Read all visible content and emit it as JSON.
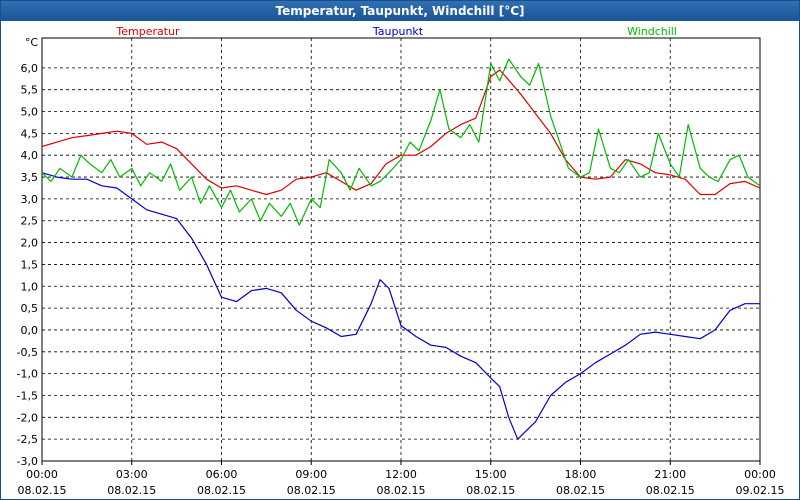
{
  "window": {
    "title": "Temperatur, Taupunkt, Windchill [°C]"
  },
  "chart_data": {
    "type": "line",
    "title": "Temperatur, Taupunkt, Windchill [°C]",
    "ylabel": "°C",
    "xlabel": "",
    "ylim": [
      -3.0,
      6.5
    ],
    "y_ticks": [
      "6,0",
      "5,5",
      "5,0",
      "4,5",
      "4,0",
      "3,5",
      "3,0",
      "2,5",
      "2,0",
      "1,5",
      "1,0",
      "0,5",
      "0,0",
      "-0,5",
      "-1,0",
      "-1,5",
      "-2,0",
      "-2,5",
      "-3,0"
    ],
    "x_ticks": [
      {
        "time": "00:00",
        "date": "08.02.15"
      },
      {
        "time": "03:00",
        "date": "08.02.15"
      },
      {
        "time": "06:00",
        "date": "08.02.15"
      },
      {
        "time": "09:00",
        "date": "08.02.15"
      },
      {
        "time": "12:00",
        "date": "08.02.15"
      },
      {
        "time": "15:00",
        "date": "08.02.15"
      },
      {
        "time": "18:00",
        "date": "08.02.15"
      },
      {
        "time": "21:00",
        "date": "08.02.15"
      },
      {
        "time": "00:00",
        "date": "09.02.15"
      }
    ],
    "grid": true,
    "legend_position": "top",
    "x_unit": "hours since 08.02.15 00:00",
    "series": [
      {
        "name": "Temperatur",
        "color": "#dd0000",
        "x": [
          0,
          0.5,
          1.0,
          1.5,
          2.0,
          2.5,
          3.0,
          3.5,
          4.0,
          4.5,
          5.0,
          5.5,
          6.0,
          6.5,
          7.0,
          7.5,
          8.0,
          8.5,
          9.0,
          9.5,
          10.0,
          10.5,
          11.0,
          11.5,
          12.0,
          12.5,
          13.0,
          13.5,
          14.0,
          14.5,
          15.0,
          15.3,
          15.5,
          16.0,
          16.5,
          17.0,
          17.5,
          18.0,
          18.5,
          19.0,
          19.5,
          20.0,
          20.5,
          21.0,
          21.5,
          22.0,
          22.5,
          23.0,
          23.5,
          24.0
        ],
        "values": [
          4.2,
          4.3,
          4.4,
          4.45,
          4.5,
          4.55,
          4.5,
          4.25,
          4.3,
          4.15,
          3.8,
          3.45,
          3.25,
          3.3,
          3.2,
          3.1,
          3.2,
          3.45,
          3.5,
          3.6,
          3.4,
          3.2,
          3.35,
          3.8,
          4.0,
          4.0,
          4.2,
          4.5,
          4.7,
          4.85,
          5.8,
          5.95,
          5.8,
          5.4,
          4.95,
          4.5,
          3.9,
          3.5,
          3.45,
          3.5,
          3.9,
          3.8,
          3.6,
          3.55,
          3.45,
          3.1,
          3.1,
          3.35,
          3.4,
          3.25
        ]
      },
      {
        "name": "Taupunkt",
        "color": "#0000cc",
        "x": [
          0,
          0.5,
          1.0,
          1.5,
          2.0,
          2.5,
          3.0,
          3.5,
          4.0,
          4.5,
          5.0,
          5.5,
          6.0,
          6.5,
          7.0,
          7.5,
          8.0,
          8.5,
          9.0,
          9.5,
          10.0,
          10.5,
          11.0,
          11.3,
          11.6,
          12.0,
          12.5,
          13.0,
          13.5,
          14.0,
          14.5,
          15.0,
          15.3,
          15.6,
          15.9,
          16.2,
          16.5,
          17.0,
          17.5,
          18.0,
          18.5,
          19.0,
          19.5,
          20.0,
          20.5,
          21.0,
          21.5,
          22.0,
          22.5,
          23.0,
          23.5,
          24.0
        ],
        "values": [
          3.6,
          3.5,
          3.45,
          3.45,
          3.3,
          3.25,
          3.0,
          2.75,
          2.65,
          2.55,
          2.1,
          1.5,
          0.75,
          0.65,
          0.9,
          0.95,
          0.85,
          0.45,
          0.2,
          0.05,
          -0.15,
          -0.1,
          0.6,
          1.15,
          0.95,
          0.1,
          -0.15,
          -0.35,
          -0.4,
          -0.6,
          -0.75,
          -1.1,
          -1.3,
          -2.0,
          -2.5,
          -2.3,
          -2.1,
          -1.5,
          -1.2,
          -1.0,
          -0.75,
          -0.55,
          -0.35,
          -0.1,
          -0.05,
          -0.1,
          -0.15,
          -0.2,
          0.0,
          0.45,
          0.6,
          0.6
        ]
      },
      {
        "name": "Windchill",
        "color": "#00bb00",
        "x": [
          0,
          0.3,
          0.6,
          1.0,
          1.3,
          1.6,
          2.0,
          2.3,
          2.6,
          3.0,
          3.3,
          3.6,
          4.0,
          4.3,
          4.6,
          5.0,
          5.3,
          5.6,
          6.0,
          6.3,
          6.6,
          7.0,
          7.3,
          7.6,
          8.0,
          8.3,
          8.6,
          9.0,
          9.3,
          9.6,
          10.0,
          10.3,
          10.6,
          11.0,
          11.3,
          11.6,
          12.0,
          12.3,
          12.6,
          13.0,
          13.3,
          13.6,
          14.0,
          14.3,
          14.6,
          15.0,
          15.3,
          15.6,
          16.0,
          16.3,
          16.6,
          17.0,
          17.3,
          17.6,
          18.0,
          18.3,
          18.6,
          19.0,
          19.3,
          19.6,
          20.0,
          20.3,
          20.6,
          21.0,
          21.3,
          21.6,
          22.0,
          22.3,
          22.6,
          23.0,
          23.3,
          23.6,
          24.0
        ],
        "values": [
          3.6,
          3.4,
          3.7,
          3.5,
          4.0,
          3.8,
          3.6,
          3.9,
          3.5,
          3.7,
          3.3,
          3.6,
          3.4,
          3.8,
          3.2,
          3.5,
          2.9,
          3.3,
          2.8,
          3.2,
          2.7,
          3.0,
          2.5,
          2.9,
          2.6,
          2.9,
          2.4,
          3.0,
          2.8,
          3.9,
          3.6,
          3.2,
          3.7,
          3.3,
          3.4,
          3.6,
          3.9,
          4.3,
          4.1,
          4.8,
          5.5,
          4.6,
          4.4,
          4.7,
          4.3,
          6.1,
          5.7,
          6.2,
          5.8,
          5.6,
          6.1,
          4.9,
          4.3,
          3.7,
          3.5,
          3.6,
          4.6,
          3.7,
          3.6,
          3.9,
          3.5,
          3.6,
          4.5,
          3.8,
          3.5,
          4.7,
          3.7,
          3.5,
          3.4,
          3.9,
          4.0,
          3.5,
          3.3
        ]
      }
    ]
  }
}
